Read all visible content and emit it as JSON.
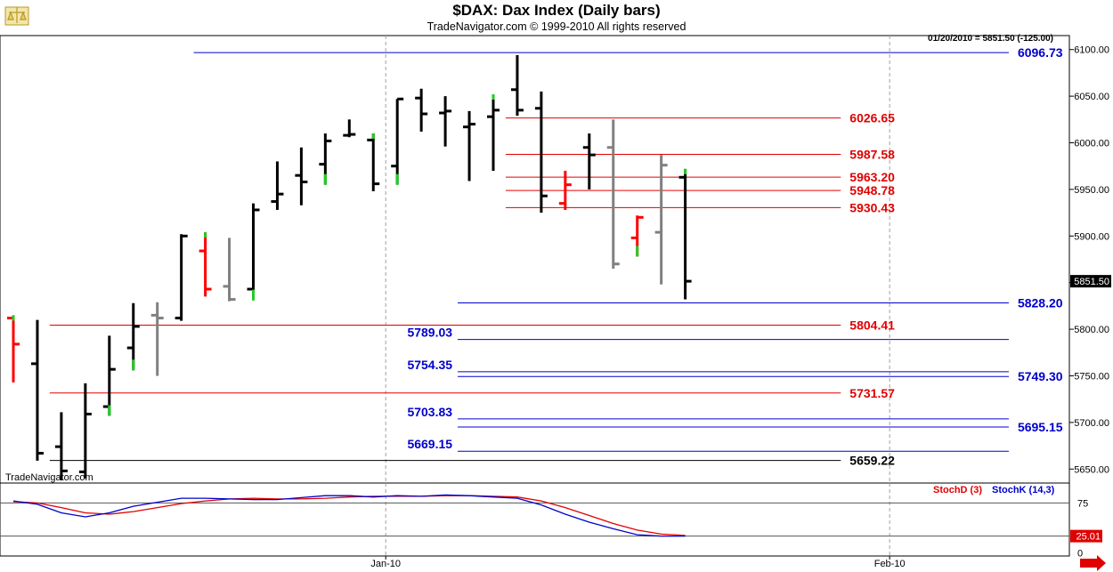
{
  "header": {
    "title": "$DAX:  Dax Index  (Daily bars)",
    "subtitle": "TradeNavigator.com © 1999-2010 All rights reserved",
    "status": "01/20/2010 = 5851.50 (-125.00)",
    "watermark": "TradeNavigator.com"
  },
  "chart_data": [
    {
      "type": "ohlc",
      "ylim": [
        5635,
        6115
      ],
      "yticks": [
        {
          "v": 6100,
          "label": "6100.00"
        },
        {
          "v": 6050,
          "label": "6050.00"
        },
        {
          "v": 6000,
          "label": "6000.00"
        },
        {
          "v": 5950,
          "label": "5950.00"
        },
        {
          "v": 5900,
          "label": "5900.00"
        },
        {
          "v": 5850,
          "label": "5850.00"
        },
        {
          "v": 5800,
          "label": "5800.00"
        },
        {
          "v": 5750,
          "label": "5750.00"
        },
        {
          "v": 5700,
          "label": "5700.00"
        },
        {
          "v": 5650,
          "label": "5650.00"
        }
      ],
      "last_price_label": "5851.50",
      "last_price": 5851.5,
      "xlabels": [
        {
          "index": 16,
          "label": "Jan-10"
        },
        {
          "index": 37,
          "label": "Feb-10"
        }
      ],
      "bars": [
        {
          "o": 5812,
          "h": 5815,
          "l": 5743,
          "c": 5784,
          "color": "#ff0000",
          "tip": "#22cc22"
        },
        {
          "o": 5763,
          "h": 5810,
          "l": 5659,
          "c": 5667,
          "color": "#000000"
        },
        {
          "o": 5674,
          "h": 5711,
          "l": 5638,
          "c": 5648,
          "color": "#000000"
        },
        {
          "o": 5647,
          "h": 5742,
          "l": 5640,
          "c": 5709,
          "color": "#000000"
        },
        {
          "o": 5717,
          "h": 5793,
          "l": 5707,
          "c": 5757,
          "color": "#000000",
          "tip_low": "#22cc22"
        },
        {
          "o": 5780,
          "h": 5828,
          "l": 5756,
          "c": 5803,
          "color": "#000000",
          "tip_low": "#22cc22"
        },
        {
          "o": 5815,
          "h": 5829,
          "l": 5750,
          "c": 5812,
          "color": "#808080"
        },
        {
          "o": 5812,
          "h": 5902,
          "l": 5809,
          "c": 5900,
          "color": "#000000"
        },
        {
          "o": 5884,
          "h": 5904,
          "l": 5835,
          "c": 5843,
          "color": "#ff0000",
          "tip": "#22cc22"
        },
        {
          "o": 5846,
          "h": 5898,
          "l": 5830,
          "c": 5832,
          "color": "#808080"
        },
        {
          "o": 5843,
          "h": 5935,
          "l": 5831,
          "c": 5928,
          "color": "#000000",
          "tip_low": "#22cc22"
        },
        {
          "o": 5937,
          "h": 5980,
          "l": 5928,
          "c": 5945,
          "color": "#000000"
        },
        {
          "o": 5965,
          "h": 5995,
          "l": 5933,
          "c": 5958,
          "color": "#000000"
        },
        {
          "o": 5977,
          "h": 6010,
          "l": 5955,
          "c": 6002,
          "color": "#000000",
          "tip_low": "#22cc22"
        },
        {
          "o": 6008,
          "h": 6025,
          "l": 6006,
          "c": 6009,
          "color": "#000000"
        },
        {
          "o": 6003,
          "h": 6010,
          "l": 5948,
          "c": 5956,
          "color": "#000000",
          "tip": "#22cc22"
        },
        {
          "o": 5975,
          "h": 6047,
          "l": 5955,
          "c": 6047,
          "color": "#000000",
          "tip_low": "#22cc22"
        },
        {
          "o": 6048,
          "h": 6058,
          "l": 6012,
          "c": 6031,
          "color": "#000000"
        },
        {
          "o": 6032,
          "h": 6050,
          "l": 5996,
          "c": 6034,
          "color": "#000000"
        },
        {
          "o": 6017,
          "h": 6034,
          "l": 5959,
          "c": 6020,
          "color": "#000000"
        },
        {
          "o": 6028,
          "h": 6052,
          "l": 5970,
          "c": 6035,
          "color": "#000000",
          "tip": "#22cc22"
        },
        {
          "o": 6057,
          "h": 6094,
          "l": 6029,
          "c": 6035,
          "color": "#000000"
        },
        {
          "o": 6037,
          "h": 6055,
          "l": 5925,
          "c": 5943,
          "color": "#000000"
        },
        {
          "o": 5935,
          "h": 5970,
          "l": 5928,
          "c": 5955,
          "color": "#ff0000"
        },
        {
          "o": 5995,
          "h": 6010,
          "l": 5950,
          "c": 5987,
          "color": "#000000"
        },
        {
          "o": 5995,
          "h": 6025,
          "l": 5865,
          "c": 5870,
          "color": "#808080"
        },
        {
          "o": 5898,
          "h": 5922,
          "l": 5878,
          "c": 5920,
          "color": "#ff0000",
          "tip_low": "#22cc22"
        },
        {
          "o": 5904,
          "h": 5987,
          "l": 5848,
          "c": 5976,
          "color": "#808080"
        },
        {
          "o": 5963,
          "h": 5972,
          "l": 5832,
          "c": 5851.5,
          "color": "#000000",
          "tip": "#22cc22"
        }
      ],
      "levels": [
        {
          "value": 6096.73,
          "label": "6096.73",
          "color": "#0000cc",
          "from": 8,
          "to": 41,
          "label_side": "right"
        },
        {
          "value": 6026.65,
          "label": "6026.65",
          "color": "#e00000",
          "from": 21,
          "to": 34,
          "label_side": "right"
        },
        {
          "value": 5987.58,
          "label": "5987.58",
          "color": "#e00000",
          "from": 21,
          "to": 34,
          "label_side": "right"
        },
        {
          "value": 5963.2,
          "label": "5963.20",
          "color": "#e00000",
          "from": 21,
          "to": 34,
          "label_side": "right"
        },
        {
          "value": 5948.78,
          "label": "5948.78",
          "color": "#e00000",
          "from": 21,
          "to": 34,
          "label_side": "right"
        },
        {
          "value": 5930.43,
          "label": "5930.43",
          "color": "#e00000",
          "from": 21,
          "to": 34,
          "label_side": "right"
        },
        {
          "value": 5828.2,
          "label": "5828.20",
          "color": "#0000cc",
          "from": 19,
          "to": 41,
          "label_side": "right"
        },
        {
          "value": 5804.41,
          "label": "5804.41",
          "color": "#e00000",
          "from": 2,
          "to": 34,
          "label_side": "right"
        },
        {
          "value": 5789.03,
          "label": "5789.03",
          "color": "#0000cc",
          "from": 19,
          "to": 41,
          "label_side": "left"
        },
        {
          "value": 5754.35,
          "label": "5754.35",
          "color": "#0000cc",
          "from": 19,
          "to": 41,
          "label_side": "left"
        },
        {
          "value": 5749.3,
          "label": "5749.30",
          "color": "#0000cc",
          "from": 19,
          "to": 41,
          "label_side": "right"
        },
        {
          "value": 5731.57,
          "label": "5731.57",
          "color": "#e00000",
          "from": 2,
          "to": 34,
          "label_side": "right"
        },
        {
          "value": 5703.83,
          "label": "5703.83",
          "color": "#0000cc",
          "from": 19,
          "to": 41,
          "label_side": "left"
        },
        {
          "value": 5695.15,
          "label": "5695.15",
          "color": "#0000cc",
          "from": 19,
          "to": 41,
          "label_side": "right"
        },
        {
          "value": 5669.15,
          "label": "5669.15",
          "color": "#0000cc",
          "from": 19,
          "to": 41,
          "label_side": "left"
        },
        {
          "value": 5659.22,
          "label": "5659.22",
          "color": "#000000",
          "from": 2,
          "to": 34,
          "label_side": "right"
        }
      ]
    },
    {
      "type": "line",
      "ylim": [
        -5,
        105
      ],
      "yticks": [
        {
          "v": 75,
          "label": "75"
        },
        {
          "v": 0,
          "label": "0"
        }
      ],
      "reference_lines": [
        75,
        25
      ],
      "current_value_label": "25.01",
      "series": [
        {
          "name": "StochD (3)",
          "color": "#e00000",
          "values": [
            77,
            75,
            68,
            60,
            58,
            62,
            68,
            74,
            78,
            81,
            82,
            81,
            81,
            82,
            84,
            85,
            85,
            85,
            86,
            86,
            85,
            84,
            78,
            68,
            56,
            44,
            34,
            28,
            26
          ]
        },
        {
          "name": "StochK (14,3)",
          "color": "#0000cc",
          "values": [
            78,
            73,
            60,
            54,
            60,
            70,
            76,
            82,
            82,
            81,
            80,
            80,
            83,
            86,
            86,
            84,
            86,
            85,
            87,
            86,
            84,
            82,
            72,
            58,
            46,
            36,
            27,
            25,
            25
          ]
        }
      ]
    }
  ]
}
